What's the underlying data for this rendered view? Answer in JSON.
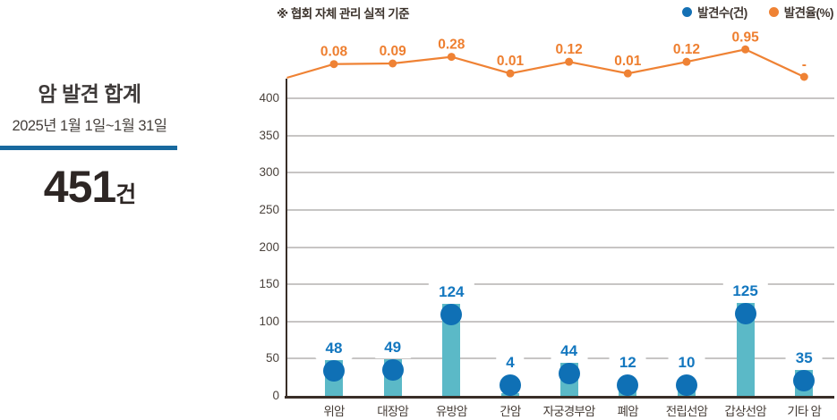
{
  "summary_panel": {
    "title": "암 발견 합계",
    "period": "2025년 1월 1일~1월 31일",
    "count_value": "451",
    "count_unit": "건",
    "divider_color": "#18699e"
  },
  "note": "※ 협회 자체 관리 실적 기준",
  "legend": {
    "count": {
      "label": "발견수(건)",
      "color": "#1470b4"
    },
    "rate": {
      "label": "발견율(%)",
      "color": "#ef8234"
    }
  },
  "chart_data": {
    "type": "bar",
    "categories": [
      "위암",
      "대장암",
      "유방암",
      "간암",
      "자궁경부암",
      "폐암",
      "전립선암",
      "갑상선암",
      "기타 암"
    ],
    "series": [
      {
        "name": "발견수(건)",
        "type": "bar",
        "values": [
          48,
          49,
          124,
          4,
          44,
          12,
          10,
          125,
          35
        ],
        "bar_color": "#5bb9c7",
        "marker_color": "#0f70b5",
        "label_color": "#1377bf"
      },
      {
        "name": "발견율(%)",
        "type": "line",
        "values": [
          0.08,
          0.09,
          0.28,
          0.01,
          0.12,
          0.01,
          0.12,
          0.95,
          null
        ],
        "labels": [
          "0.08",
          "0.09",
          "0.28",
          "0.01",
          "0.12",
          "0.01",
          "0.12",
          "0.95",
          "-"
        ],
        "color": "#ef8234"
      }
    ],
    "title": "",
    "xlabel": "",
    "ylabel": "",
    "yticks": [
      0,
      50,
      100,
      150,
      200,
      250,
      300,
      350,
      400
    ],
    "ylim": [
      0,
      400
    ],
    "grid": true,
    "legend_position": "top-right"
  }
}
